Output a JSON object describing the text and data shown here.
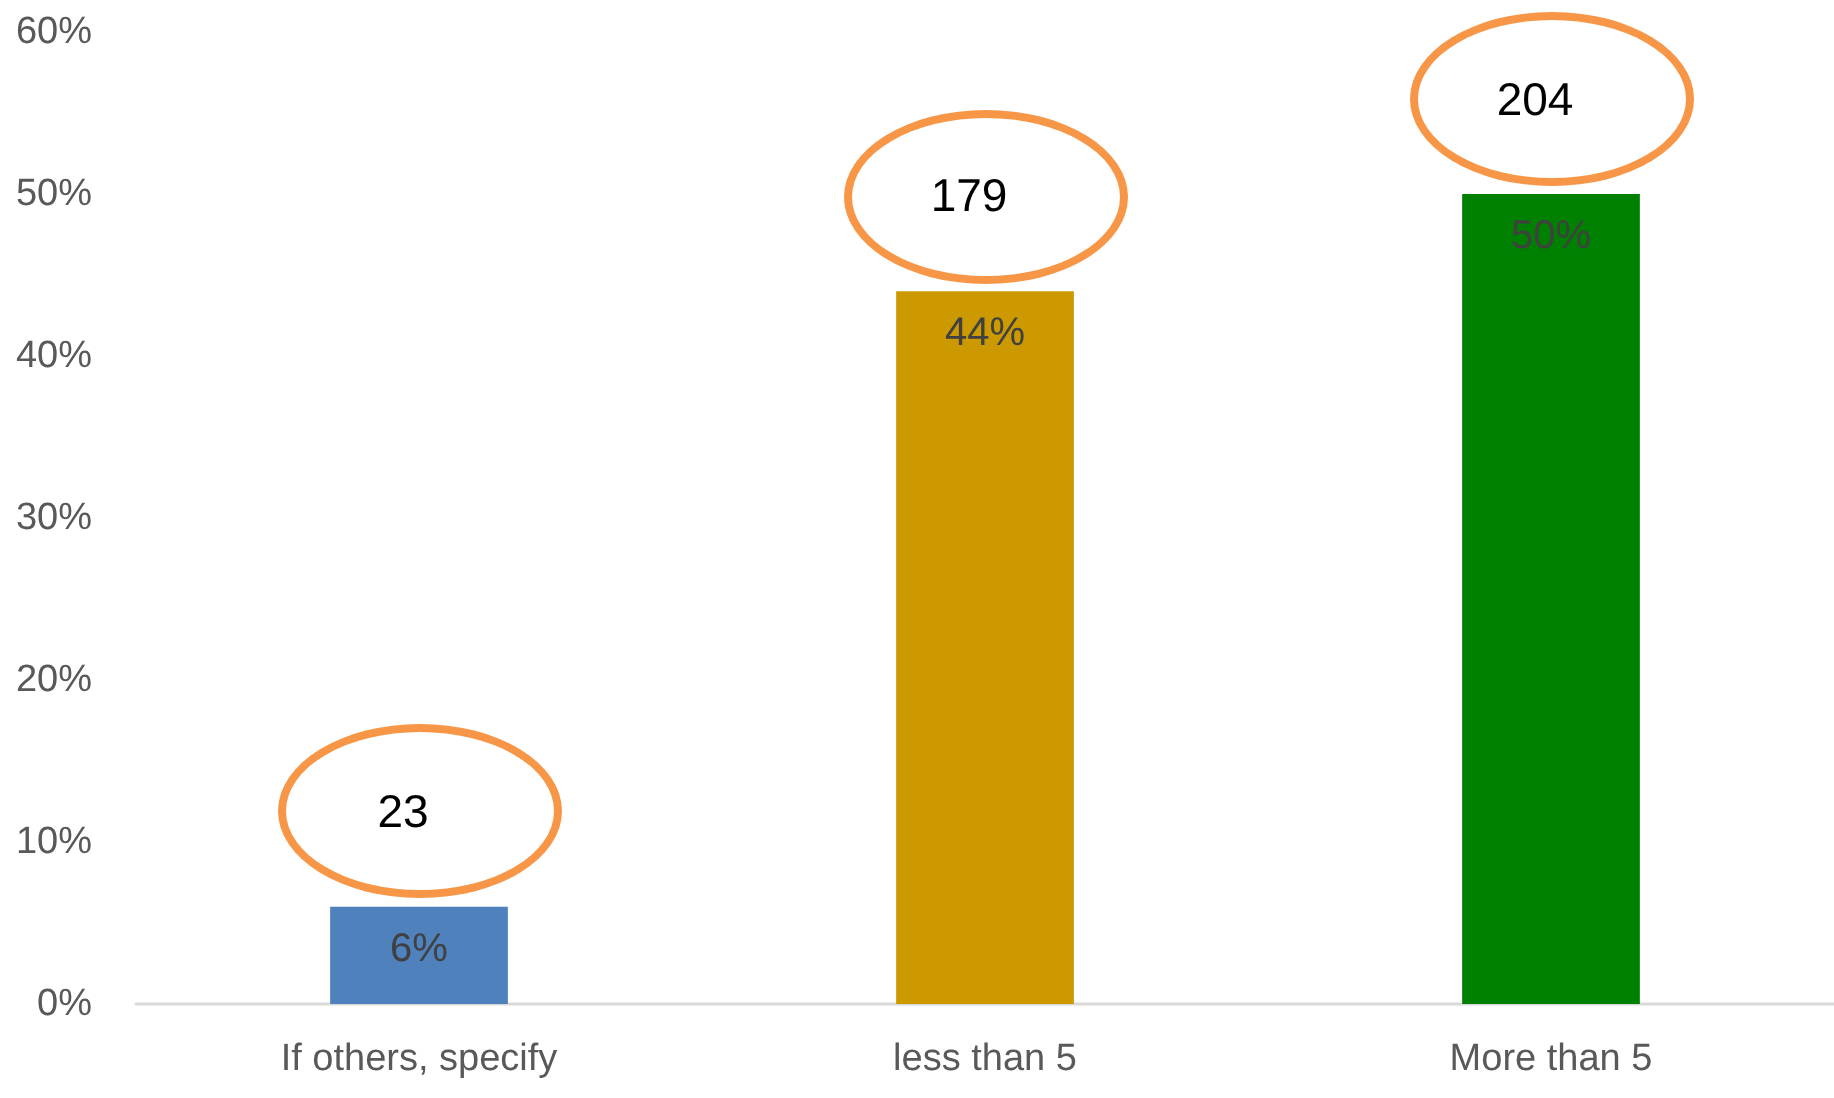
{
  "chart_data": {
    "type": "bar",
    "categories": [
      "If others, specify",
      "less than 5",
      "More than 5"
    ],
    "values": [
      6,
      44,
      50
    ],
    "colors": [
      "#4f81bd",
      "#cc9900",
      "#008000"
    ],
    "value_labels": [
      "6%",
      "44%",
      "50%"
    ],
    "ylim": [
      0,
      60
    ],
    "yticks": [
      {
        "value": 0,
        "label": "0%"
      },
      {
        "value": 10,
        "label": "10%"
      },
      {
        "value": 20,
        "label": "20%"
      },
      {
        "value": 30,
        "label": "30%"
      },
      {
        "value": 40,
        "label": "40%"
      },
      {
        "value": 50,
        "label": "50%"
      },
      {
        "value": 60,
        "label": "60%"
      }
    ],
    "annotations": [
      {
        "text": "23",
        "x": "If others, specify",
        "y": 6
      },
      {
        "text": "179",
        "x": "less than 5",
        "y": 44
      },
      {
        "text": "204",
        "x": "More than 5",
        "y": 50
      }
    ]
  }
}
